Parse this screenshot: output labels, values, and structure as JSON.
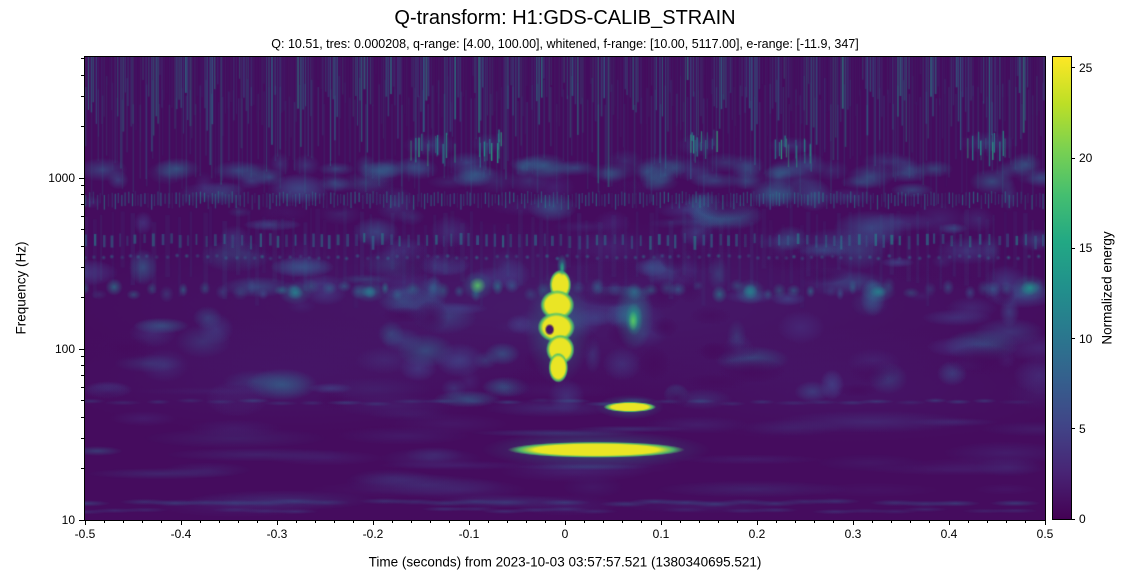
{
  "chart_data": {
    "type": "heatmap",
    "subtype": "q-transform-spectrogram",
    "title": "Q-transform: H1:GDS-CALIB_STRAIN",
    "subtitle": "Q: 10.51, tres: 0.000208, q-range: [4.00, 100.00], whitened, f-range: [10.00, 5117.00], e-range: [-11.9, 347]",
    "xlabel": "Time (seconds) from 2023-10-03 03:57:57.521 (1380340695.521)",
    "ylabel": "Frequency (Hz)",
    "background": "#ffffff",
    "x_range": [
      -0.5,
      0.5
    ],
    "x_minor_step": 0.02,
    "x_ticks": [
      {
        "v": -0.5,
        "label": "-0.5"
      },
      {
        "v": -0.4,
        "label": "-0.4"
      },
      {
        "v": -0.3,
        "label": "-0.3"
      },
      {
        "v": -0.2,
        "label": "-0.2"
      },
      {
        "v": -0.1,
        "label": "-0.1"
      },
      {
        "v": 0,
        "label": "0"
      },
      {
        "v": 0.1,
        "label": "0.1"
      },
      {
        "v": 0.2,
        "label": "0.2"
      },
      {
        "v": 0.3,
        "label": "0.3"
      },
      {
        "v": 0.4,
        "label": "0.4"
      },
      {
        "v": 0.5,
        "label": "0.5"
      }
    ],
    "y_scale": "log",
    "y_range": [
      10,
      5117
    ],
    "y_ticks": [
      {
        "v": 10,
        "label": "10"
      },
      {
        "v": 100,
        "label": "100"
      },
      {
        "v": 1000,
        "label": "1000"
      }
    ],
    "grid": false,
    "colorbar": {
      "label": "Normalized energy",
      "range": [
        0,
        25.6
      ],
      "ticks": [
        {
          "v": 0,
          "label": "0"
        },
        {
          "v": 5,
          "label": "5"
        },
        {
          "v": 10,
          "label": "10"
        },
        {
          "v": 15,
          "label": "15"
        },
        {
          "v": 20,
          "label": "20"
        },
        {
          "v": 25,
          "label": "25"
        }
      ],
      "colormap": "viridis",
      "colormap_rgb": [
        [
          68,
          1,
          84
        ],
        [
          72,
          36,
          117
        ],
        [
          65,
          68,
          135
        ],
        [
          53,
          95,
          141
        ],
        [
          42,
          120,
          142
        ],
        [
          33,
          144,
          140
        ],
        [
          34,
          168,
          132
        ],
        [
          68,
          190,
          112
        ],
        [
          122,
          209,
          81
        ],
        [
          189,
          223,
          38
        ],
        [
          253,
          231,
          37
        ]
      ]
    },
    "noise_bands_hz": [
      745,
      420,
      340,
      215
    ],
    "features": [
      {
        "kind": "event",
        "label": "main glitch core",
        "t": [
          -0.03,
          0.016
        ],
        "f": [
          68,
          265
        ],
        "energy": 25,
        "hole": {
          "t": -0.016,
          "f": 130
        }
      },
      {
        "kind": "spike",
        "label": "narrow spike above core",
        "t": [
          -0.007,
          0.001
        ],
        "f": [
          265,
          360
        ],
        "energy": 13
      },
      {
        "kind": "event",
        "label": "25 Hz burst",
        "t": [
          -0.06,
          0.125
        ],
        "f": [
          22.5,
          29.5
        ],
        "energy": 25
      },
      {
        "kind": "event",
        "label": "46 Hz burst",
        "t": [
          0.04,
          0.095
        ],
        "f": [
          42,
          50
        ],
        "energy": 25
      },
      {
        "kind": "blob",
        "label": "130 Hz echo",
        "t": [
          0.055,
          0.089
        ],
        "f": [
          100,
          245
        ],
        "energy": 19
      },
      {
        "kind": "spot",
        "label": "220 Hz spot",
        "t": [
          -0.102,
          -0.08
        ],
        "f": [
          205,
          270
        ],
        "energy": 19
      },
      {
        "kind": "spot",
        "label": "bead-row spot",
        "t": [
          -0.292,
          -0.27
        ],
        "f": [
          190,
          240
        ],
        "energy": 11
      },
      {
        "kind": "spot",
        "label": "bead-row spot",
        "t": [
          -0.215,
          -0.193
        ],
        "f": [
          195,
          240
        ],
        "energy": 10
      },
      {
        "kind": "spot",
        "label": "bead-row spot",
        "t": [
          0.183,
          0.203
        ],
        "f": [
          190,
          245
        ],
        "energy": 11
      },
      {
        "kind": "spot",
        "label": "bead-row spot",
        "t": [
          0.315,
          0.338
        ],
        "f": [
          195,
          240
        ],
        "energy": 11
      },
      {
        "kind": "spot",
        "label": "bead-row spot",
        "t": [
          0.472,
          0.497
        ],
        "f": [
          200,
          260
        ],
        "energy": 13
      },
      {
        "kind": "cluster",
        "label": "hf streaks",
        "t": [
          -0.165,
          -0.115
        ],
        "f": [
          1250,
          1950
        ],
        "energy": 10
      },
      {
        "kind": "cluster",
        "label": "hf streaks",
        "t": [
          -0.095,
          -0.065
        ],
        "f": [
          1300,
          1950
        ],
        "energy": 10
      },
      {
        "kind": "cluster",
        "label": "hf streaks",
        "t": [
          0.12,
          0.16
        ],
        "f": [
          1250,
          1950
        ],
        "energy": 10
      },
      {
        "kind": "cluster",
        "label": "hf streaks",
        "t": [
          0.215,
          0.255
        ],
        "f": [
          1300,
          1850
        ],
        "energy": 9
      },
      {
        "kind": "cluster",
        "label": "hf streaks",
        "t": [
          0.415,
          0.465
        ],
        "f": [
          1300,
          2000
        ],
        "energy": 10
      }
    ]
  }
}
